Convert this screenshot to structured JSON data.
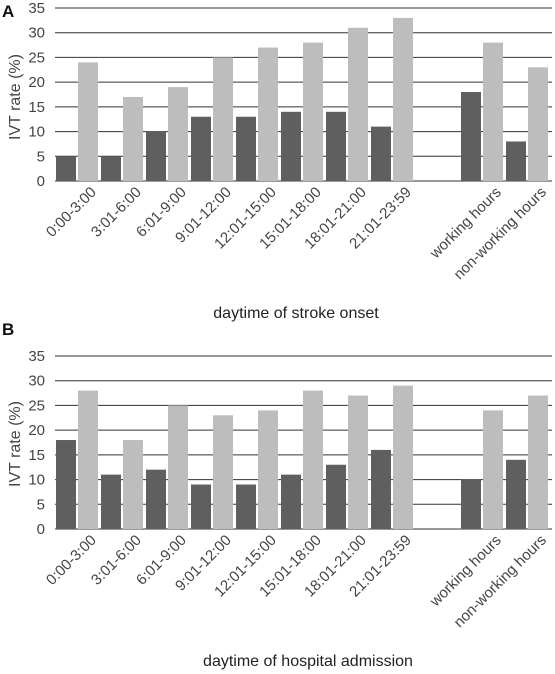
{
  "colors": {
    "dark": "#5f5f5f",
    "light": "#bdbdbd",
    "grid": "#333333",
    "text": "#444444"
  },
  "chart_data": [
    {
      "type": "bar",
      "panel_label": "A",
      "title": "",
      "ylabel": "IVT rate (%)",
      "xlabel": "daytime of stroke onset",
      "ylim": [
        0,
        35
      ],
      "yticks": [
        0,
        5,
        10,
        15,
        20,
        25,
        30,
        35
      ],
      "grid": true,
      "legend": "none",
      "categories": [
        "0:00-3:00",
        "3:01-6:00",
        "6:01-9:00",
        "9:01-12:00",
        "12:01-15:00",
        "15:01-18:00",
        "18:01-21:00",
        "21:01-23:59",
        "",
        "working hours",
        "non-working hours"
      ],
      "series": [
        {
          "values": [
            5,
            5,
            10,
            13,
            13,
            14,
            14,
            11,
            null,
            18,
            8
          ]
        },
        {
          "values": [
            24,
            17,
            19,
            25,
            27,
            28,
            31,
            33,
            null,
            28,
            23
          ]
        }
      ]
    },
    {
      "type": "bar",
      "panel_label": "B",
      "title": "",
      "ylabel": "IVT rate (%)",
      "xlabel": "daytime of hospital admission",
      "ylim": [
        0,
        35
      ],
      "yticks": [
        0,
        5,
        10,
        15,
        20,
        25,
        30,
        35
      ],
      "grid": true,
      "legend": "none",
      "categories": [
        "0:00-3:00",
        "3:01-6:00",
        "6:01-9:00",
        "9:01-12:00",
        "12:01-15:00",
        "15:01-18:00",
        "18:01-21:00",
        "21:01-23:59",
        "",
        "working hours",
        "non-working hours"
      ],
      "series": [
        {
          "values": [
            18,
            11,
            12,
            9,
            9,
            11,
            13,
            16,
            null,
            10,
            14
          ]
        },
        {
          "values": [
            28,
            18,
            25,
            23,
            24,
            28,
            27,
            29,
            null,
            24,
            27
          ]
        }
      ]
    }
  ]
}
